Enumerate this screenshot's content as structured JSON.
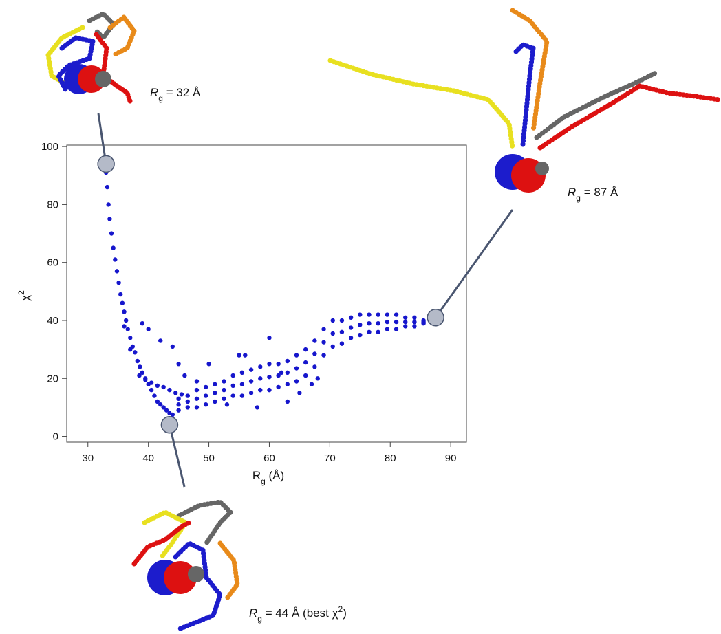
{
  "chart_data": {
    "type": "scatter",
    "x_label": [
      {
        "text": "R"
      },
      {
        "text": "g",
        "style": "sub"
      },
      {
        "text": " (Å)"
      }
    ],
    "y_label": [
      {
        "text": "χ"
      },
      {
        "text": "2",
        "style": "super"
      }
    ],
    "color": "#1616cc",
    "xlim": [
      26.5,
      92.6
    ],
    "ylim": [
      -2,
      100.5
    ],
    "xticks": [
      30,
      40,
      50,
      60,
      70,
      80,
      90
    ],
    "yticks": [
      0,
      20,
      40,
      60,
      80,
      100
    ],
    "x": [
      33,
      33.2,
      33.4,
      33.6,
      33.9,
      34.2,
      34.5,
      34.8,
      35.1,
      35.4,
      35.7,
      36,
      36.3,
      36.6,
      37,
      37.4,
      37.8,
      38.2,
      38.6,
      39,
      39.5,
      40,
      40.5,
      41,
      41.5,
      42,
      42.5,
      43,
      43.5,
      44,
      38.5,
      39.5,
      40.5,
      41.5,
      42.5,
      43.5,
      44.5,
      45.5,
      39,
      40,
      42,
      44,
      45,
      46,
      48,
      36,
      37,
      45,
      45,
      45,
      46.5,
      46.5,
      46.5,
      48,
      48,
      48,
      49.5,
      49.5,
      49.5,
      51,
      51,
      51,
      52.5,
      52.5,
      52.5,
      54,
      54,
      54,
      55.5,
      55.5,
      55.5,
      57,
      57,
      57,
      58.5,
      58.5,
      58.5,
      60,
      60,
      60,
      61.5,
      61.5,
      61.5,
      63,
      63,
      63,
      64.5,
      64.5,
      64.5,
      66,
      66,
      66,
      67.5,
      67.5,
      67.5,
      69,
      69,
      69,
      70.5,
      70.5,
      70.5,
      72,
      72,
      72,
      73.5,
      73.5,
      73.5,
      75,
      75,
      75,
      76.5,
      76.5,
      76.5,
      78,
      78,
      78,
      79.5,
      79.5,
      79.5,
      81,
      81,
      81,
      82.5,
      82.5,
      82.5,
      84,
      84,
      84,
      85.5,
      85.5,
      85.5,
      58,
      62,
      56,
      65,
      68,
      67,
      50,
      55,
      60,
      53,
      63
    ],
    "y": [
      91,
      86,
      80,
      75,
      70,
      65,
      61,
      57,
      53,
      49,
      46,
      43,
      40,
      37,
      34,
      31,
      29,
      26,
      24,
      22,
      20,
      18,
      16,
      14,
      12,
      11,
      10,
      9,
      8,
      7.5,
      21,
      19.5,
      18.5,
      17.5,
      17,
      16,
      15,
      14.5,
      39,
      37,
      33,
      31,
      25,
      21,
      19,
      38,
      30,
      9,
      13,
      11,
      10,
      14,
      12,
      10,
      16,
      13,
      11,
      17,
      14,
      12,
      18,
      15,
      13,
      19,
      16,
      14,
      21,
      17.5,
      14,
      22,
      18,
      15,
      23,
      19,
      16,
      24,
      20,
      16,
      25,
      20.5,
      17,
      25,
      21,
      18,
      26,
      22,
      19,
      28,
      23.5,
      21,
      30,
      25.5,
      24,
      33,
      28.5,
      28,
      37,
      32.5,
      31,
      40,
      35.5,
      32,
      40,
      36,
      34,
      41,
      37.5,
      35,
      42,
      38.5,
      36,
      42,
      39,
      36,
      42,
      39,
      37,
      42,
      39.5,
      37,
      42,
      39.5,
      38,
      41,
      39.5,
      38,
      41,
      39.5,
      39,
      40,
      39.5,
      10,
      22,
      28,
      15,
      20,
      18,
      25,
      28,
      34,
      11,
      12
    ],
    "annotations": [
      {
        "x": 33,
        "y": 94,
        "label": [
          {
            "text": "R",
            "style": "italic"
          },
          {
            "text": "g",
            "style": "sub"
          },
          {
            "text": " = 32 Å"
          }
        ]
      },
      {
        "x": 43.5,
        "y": 4,
        "label": [
          {
            "text": "R",
            "style": "italic"
          },
          {
            "text": "g",
            "style": "sub"
          },
          {
            "text": " = 44 Å (best "
          },
          {
            "text": "χ"
          },
          {
            "text": "2",
            "style": "super"
          },
          {
            "text": ")"
          }
        ]
      },
      {
        "x": 87.5,
        "y": 41,
        "label": [
          {
            "text": "R",
            "style": "italic"
          },
          {
            "text": "g",
            "style": "sub"
          },
          {
            "text": " = 87 Å"
          }
        ]
      }
    ]
  }
}
